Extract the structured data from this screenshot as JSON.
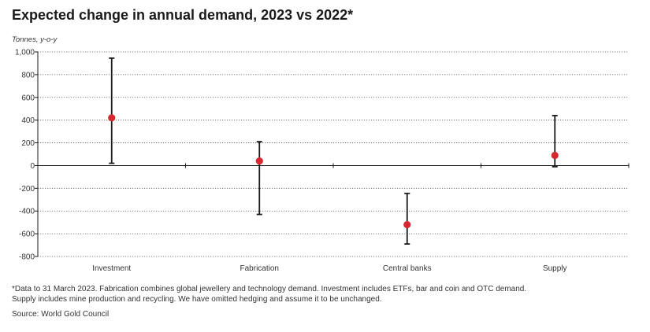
{
  "chart_data": {
    "type": "errorbar",
    "title": "Expected change in annual demand, 2023 vs 2022*",
    "ylabel": "Tonnes, y-o-y",
    "ylim": [
      -800,
      1000
    ],
    "yticks": [
      1000,
      800,
      600,
      400,
      200,
      0,
      -200,
      -400,
      -600,
      -800
    ],
    "ytick_labels": [
      "1,000",
      "800",
      "600",
      "400",
      "200",
      "0",
      "-200",
      "-400",
      "-600",
      "-800"
    ],
    "grid": "horizontal dotted",
    "categories": [
      "Investment",
      "Fabrication",
      "Central banks",
      "Supply"
    ],
    "points": [
      {
        "category": "Investment",
        "value": 420,
        "low": 20,
        "high": 945
      },
      {
        "category": "Fabrication",
        "value": 40,
        "low": -430,
        "high": 210
      },
      {
        "category": "Central banks",
        "value": -520,
        "low": -690,
        "high": -245
      },
      {
        "category": "Supply",
        "value": 90,
        "low": -10,
        "high": 440
      }
    ],
    "colors": {
      "point": "#d7282f",
      "bar": "#1a1a1a",
      "grid": "#555555"
    }
  },
  "footnote": "*Data to 31 March 2023. Fabrication combines global jewellery and technology demand. Investment includes ETFs, bar and coin and OTC demand. Supply includes mine production and recycling. We have omitted hedging and assume it to be unchanged.",
  "source": "Source: World Gold Council"
}
